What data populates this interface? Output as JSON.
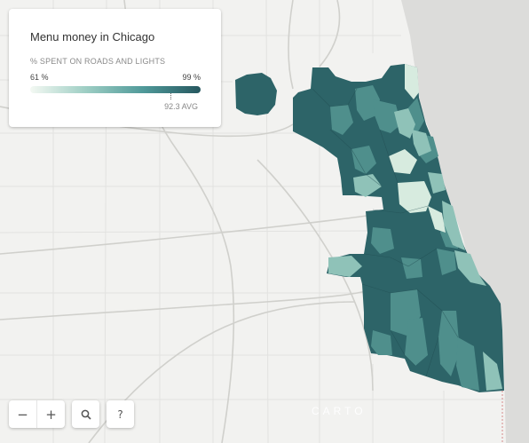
{
  "legend": {
    "title": "Menu money in Chicago",
    "subtitle": "% SPENT ON ROADS AND LIGHTS",
    "min_label": "61 %",
    "max_label": "99 %",
    "avg_label": "92.3 AVG",
    "avg_value": 92.3,
    "min_value": 61,
    "max_value": 99,
    "ramp_colors": [
      "#f4f9f3",
      "#9ccdc3",
      "#4f9999",
      "#26575f"
    ]
  },
  "controls": {
    "zoom_out": "−",
    "zoom_in": "+",
    "search_icon": "search-icon",
    "help": "?"
  },
  "attribution": "CARTO",
  "colors": {
    "land": "#f2f2f0",
    "water": "#dcdcda",
    "ward_dark": "#2d6468",
    "ward_mid": "#4f8f8c",
    "ward_light": "#8fc2b8",
    "ward_lightest": "#d7ebdf"
  }
}
